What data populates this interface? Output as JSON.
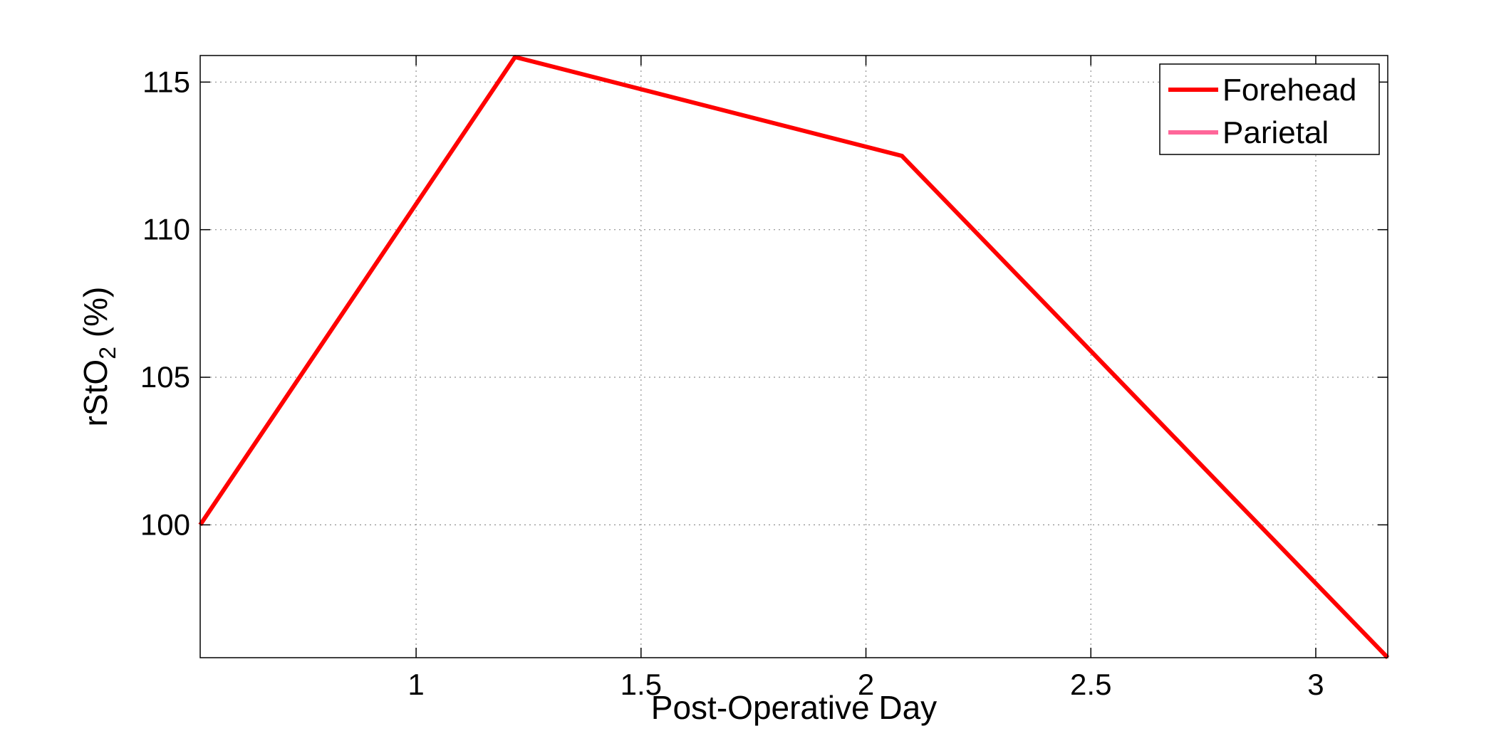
{
  "chart_data": {
    "type": "line",
    "title": "",
    "xlabel": "Post-Operative Day",
    "ylabel": {
      "main": "rStO",
      "subscript": "2",
      "suffix": " (%)"
    },
    "xlim": [
      0.52,
      3.16
    ],
    "ylim": [
      95.5,
      115.9
    ],
    "xticks": [
      {
        "value": 1,
        "label": "1"
      },
      {
        "value": 1.5,
        "label": "1.5"
      },
      {
        "value": 2,
        "label": "2"
      },
      {
        "value": 2.5,
        "label": "2.5"
      },
      {
        "value": 3,
        "label": "3"
      }
    ],
    "yticks": [
      {
        "value": 100,
        "label": "100"
      },
      {
        "value": 105,
        "label": "105"
      },
      {
        "value": 110,
        "label": "110"
      },
      {
        "value": 115,
        "label": "115"
      }
    ],
    "grid": true,
    "legend_position": "top-right",
    "series": [
      {
        "name": "Forehead",
        "color": "#ff0000",
        "x": [
          0.52,
          1.22,
          2.08,
          3.16
        ],
        "y": [
          100.0,
          115.85,
          112.5,
          95.5
        ]
      },
      {
        "name": "Parietal",
        "color": "#ff6699",
        "x": [],
        "y": []
      }
    ]
  }
}
